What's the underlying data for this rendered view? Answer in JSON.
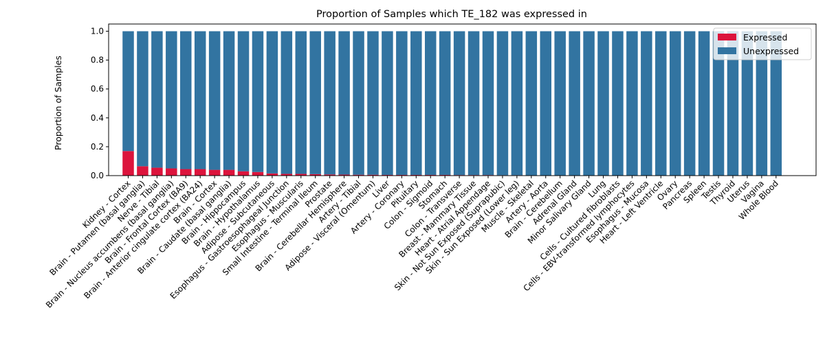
{
  "chart_data": {
    "type": "bar",
    "stacked": true,
    "title": "Proportion of Samples which TE_182 was expressed in",
    "xlabel": "",
    "ylabel": "Proportion of Samples",
    "ylim": [
      0,
      1.05
    ],
    "yticks": [
      "0.0",
      "0.2",
      "0.4",
      "0.6",
      "0.8",
      "1.0"
    ],
    "grid": false,
    "legend_position": "top-right",
    "categories": [
      "Kidney - Cortex",
      "Brain - Putamen (basal ganglia)",
      "Nerve - Tibial",
      "Brain - Nucleus accumbens (basal ganglia)",
      "Brain - Frontal Cortex (BA9)",
      "Brain - Anterior cingulate cortex (BA24)",
      "Brain - Cortex",
      "Brain - Caudate (basal ganglia)",
      "Brain - Hippocampus",
      "Brain - Hypothalamus",
      "Adipose - Subcutaneous",
      "Esophagus - Gastroesophageal Junction",
      "Esophagus - Muscularis",
      "Small Intestine - Terminal Ileum",
      "Prostate",
      "Brain - Cerebellar Hemisphere",
      "Artery - Tibial",
      "Adipose - Visceral (Omentum)",
      "Liver",
      "Artery - Coronary",
      "Pituitary",
      "Colon - Sigmoid",
      "Stomach",
      "Colon - Transverse",
      "Breast - Mammary Tissue",
      "Heart - Atrial Appendage",
      "Skin - Not Sun Exposed (Suprapubic)",
      "Skin - Sun Exposed (Lower leg)",
      "Muscle - Skeletal",
      "Artery - Aorta",
      "Brain - Cerebellum",
      "Adrenal Gland",
      "Minor Salivary Gland",
      "Lung",
      "Cells - Cultured fibroblasts",
      "Cells - EBV-transformed lymphocytes",
      "Esophagus - Mucosa",
      "Heart - Left Ventricle",
      "Ovary",
      "Pancreas",
      "Spleen",
      "Testis",
      "Thyroid",
      "Uterus",
      "Vagina",
      "Whole Blood"
    ],
    "series": [
      {
        "name": "Expressed",
        "color": "#dc143c",
        "values": [
          0.17,
          0.065,
          0.055,
          0.05,
          0.045,
          0.045,
          0.04,
          0.04,
          0.03,
          0.025,
          0.015,
          0.012,
          0.012,
          0.01,
          0.008,
          0.007,
          0.006,
          0.006,
          0.005,
          0.005,
          0.005,
          0.005,
          0.005,
          0.004,
          0.004,
          0.004,
          0.003,
          0.003,
          0.002,
          0,
          0,
          0,
          0,
          0,
          0,
          0,
          0,
          0,
          0,
          0,
          0,
          0,
          0,
          0,
          0,
          0
        ]
      },
      {
        "name": "Unexpressed",
        "color": "#3274a1",
        "values": [
          0.83,
          0.935,
          0.945,
          0.95,
          0.955,
          0.955,
          0.96,
          0.96,
          0.97,
          0.975,
          0.985,
          0.988,
          0.988,
          0.99,
          0.992,
          0.993,
          0.994,
          0.994,
          0.995,
          0.995,
          0.995,
          0.995,
          0.995,
          0.996,
          0.996,
          0.996,
          0.997,
          0.997,
          0.998,
          1,
          1,
          1,
          1,
          1,
          1,
          1,
          1,
          1,
          1,
          1,
          1,
          1,
          1,
          1,
          1,
          1
        ]
      }
    ]
  }
}
